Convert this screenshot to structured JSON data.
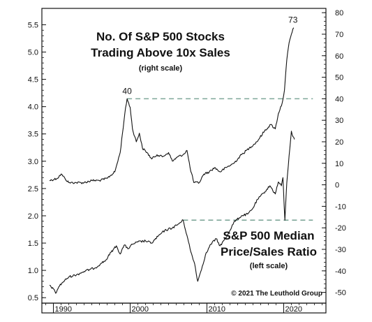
{
  "chart_data": {
    "type": "line",
    "copyright": "© 2021 The Leuthold Group",
    "x_axis": {
      "range": [
        1988.5,
        2025.5
      ],
      "ticks": [
        1990,
        2000,
        2010,
        2020
      ],
      "tick_labels": [
        "1990",
        "2000",
        "2010",
        "2020"
      ]
    },
    "left_axis": {
      "range": [
        0.4,
        5.8
      ],
      "ticks": [
        0.5,
        1.0,
        1.5,
        2.0,
        2.5,
        3.0,
        3.5,
        4.0,
        4.5,
        5.0,
        5.5
      ],
      "tick_labels": [
        "0.5",
        "1.0",
        "1.5",
        "2.0",
        "2.5",
        "3.0",
        "3.5",
        "4.0",
        "4.5",
        "5.0",
        "5.5"
      ]
    },
    "right_axis": {
      "range": [
        -55,
        82
      ],
      "ticks": [
        -50,
        -40,
        -30,
        -20,
        -10,
        0,
        10,
        20,
        30,
        40,
        50,
        60,
        70,
        80
      ],
      "tick_labels": [
        "-50",
        "-40",
        "-30",
        "-20",
        "-10",
        "0",
        "10",
        "20",
        "30",
        "40",
        "50",
        "60",
        "70",
        "80"
      ]
    },
    "series": [
      {
        "name": "No. Of S&P 500 Stocks Trading Above 10x Sales",
        "title_lines": [
          "No. Of S&P 500 Stocks",
          "Trading Above 10x Sales"
        ],
        "scale_note": "(right scale)",
        "axis": "right",
        "color": "#111111",
        "points": [
          [
            1989.5,
            2
          ],
          [
            1990.5,
            3
          ],
          [
            1991.0,
            5
          ],
          [
            1991.5,
            3
          ],
          [
            1992,
            1
          ],
          [
            1993,
            1
          ],
          [
            1994,
            1
          ],
          [
            1995,
            2
          ],
          [
            1996,
            2
          ],
          [
            1997,
            3
          ],
          [
            1998,
            6
          ],
          [
            1998.7,
            15
          ],
          [
            1999.3,
            33
          ],
          [
            1999.6,
            40
          ],
          [
            2000.0,
            36
          ],
          [
            2000.3,
            26
          ],
          [
            2000.8,
            20
          ],
          [
            2001.2,
            24
          ],
          [
            2001.6,
            17
          ],
          [
            2002.2,
            15
          ],
          [
            2002.8,
            12
          ],
          [
            2003.5,
            14
          ],
          [
            2004.2,
            13
          ],
          [
            2005.0,
            15
          ],
          [
            2005.5,
            11
          ],
          [
            2006.2,
            13
          ],
          [
            2006.9,
            14
          ],
          [
            2007.4,
            16
          ],
          [
            2007.8,
            8
          ],
          [
            2008.3,
            1
          ],
          [
            2009.0,
            1
          ],
          [
            2009.6,
            5
          ],
          [
            2010.3,
            6
          ],
          [
            2011.0,
            8
          ],
          [
            2011.7,
            6
          ],
          [
            2012.5,
            8
          ],
          [
            2013.5,
            10
          ],
          [
            2014.5,
            14
          ],
          [
            2015.5,
            17
          ],
          [
            2016.5,
            20
          ],
          [
            2017.5,
            25
          ],
          [
            2018.3,
            28
          ],
          [
            2018.9,
            26
          ],
          [
            2019.3,
            33
          ],
          [
            2019.8,
            38
          ],
          [
            2020.1,
            44
          ],
          [
            2020.4,
            58
          ],
          [
            2020.7,
            66
          ],
          [
            2021.0,
            70
          ],
          [
            2021.3,
            73
          ]
        ]
      },
      {
        "name": "S&P 500 Median Price/Sales Ratio",
        "title_lines": [
          "S&P 500 Median",
          "Price/Sales Ratio"
        ],
        "scale_note": "(left scale)",
        "axis": "left",
        "color": "#111111",
        "points": [
          [
            1989.5,
            0.73
          ],
          [
            1990.0,
            0.66
          ],
          [
            1990.3,
            0.58
          ],
          [
            1990.7,
            0.7
          ],
          [
            1991.2,
            0.78
          ],
          [
            1992,
            0.88
          ],
          [
            1993,
            0.92
          ],
          [
            1994,
            0.98
          ],
          [
            1994.8,
            1.02
          ],
          [
            1995.5,
            1.05
          ],
          [
            1996.2,
            1.13
          ],
          [
            1996.8,
            1.18
          ],
          [
            1997.5,
            1.33
          ],
          [
            1998.2,
            1.45
          ],
          [
            1998.7,
            1.3
          ],
          [
            1999.2,
            1.46
          ],
          [
            1999.8,
            1.4
          ],
          [
            2000.3,
            1.48
          ],
          [
            2001.0,
            1.52
          ],
          [
            2002.0,
            1.54
          ],
          [
            2002.8,
            1.5
          ],
          [
            2003.6,
            1.62
          ],
          [
            2004.5,
            1.73
          ],
          [
            2005.5,
            1.78
          ],
          [
            2006.3,
            1.85
          ],
          [
            2006.9,
            1.92
          ],
          [
            2007.4,
            1.64
          ],
          [
            2007.9,
            1.34
          ],
          [
            2008.4,
            1.12
          ],
          [
            2008.8,
            0.8
          ],
          [
            2009.2,
            0.98
          ],
          [
            2009.8,
            1.28
          ],
          [
            2010.5,
            1.48
          ],
          [
            2011.2,
            1.58
          ],
          [
            2011.7,
            1.45
          ],
          [
            2012.5,
            1.6
          ],
          [
            2013.5,
            1.88
          ],
          [
            2014.5,
            2.0
          ],
          [
            2015.3,
            2.03
          ],
          [
            2015.9,
            2.12
          ],
          [
            2016.6,
            2.3
          ],
          [
            2017.4,
            2.42
          ],
          [
            2018.2,
            2.55
          ],
          [
            2018.9,
            2.4
          ],
          [
            2019.3,
            2.62
          ],
          [
            2019.7,
            2.55
          ],
          [
            2019.9,
            2.7
          ],
          [
            2020.15,
            1.92
          ],
          [
            2020.4,
            2.6
          ],
          [
            2020.7,
            3.1
          ],
          [
            2021.0,
            3.55
          ],
          [
            2021.2,
            3.45
          ],
          [
            2021.4,
            3.4
          ]
        ]
      }
    ],
    "reference_lines": [
      {
        "axis": "right",
        "value": 40,
        "label": "40",
        "x_range": [
          1999.6,
          2023.8
        ]
      },
      {
        "axis": "left",
        "value": 1.92,
        "label": "",
        "x_range": [
          2006.9,
          2023.8
        ]
      }
    ],
    "annotations": [
      {
        "text": "40",
        "series": "No. Of S&P 500 Stocks Trading Above 10x Sales",
        "x": 1999.6,
        "value": 40
      },
      {
        "text": "73",
        "series": "No. Of S&P 500 Stocks Trading Above 10x Sales",
        "x": 2021.2,
        "value": 73
      }
    ],
    "grid": false,
    "legend": "none"
  }
}
